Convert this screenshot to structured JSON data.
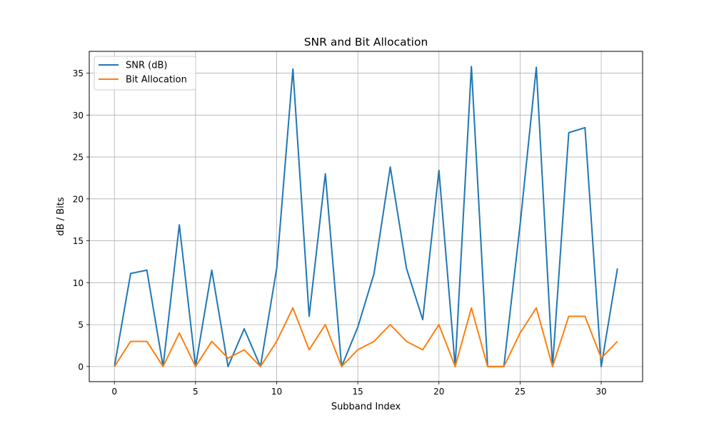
{
  "chart_data": {
    "type": "line",
    "title": "SNR and Bit Allocation",
    "xlabel": "Subband Index",
    "ylabel": "dB / Bits",
    "x": [
      0,
      1,
      2,
      3,
      4,
      5,
      6,
      7,
      8,
      9,
      10,
      11,
      12,
      13,
      14,
      15,
      16,
      17,
      18,
      19,
      20,
      21,
      22,
      23,
      24,
      25,
      26,
      27,
      28,
      29,
      30,
      31
    ],
    "xlim": [
      -1.55,
      32.55
    ],
    "ylim": [
      -1.8,
      37.6
    ],
    "xticks": [
      0,
      5,
      10,
      15,
      20,
      25,
      30
    ],
    "yticks": [
      0,
      5,
      10,
      15,
      20,
      25,
      30,
      35
    ],
    "grid": true,
    "legend_position": "top-left",
    "series": [
      {
        "name": "SNR (dB)",
        "color": "#1f77b4",
        "values": [
          0,
          11.1,
          11.5,
          0,
          16.9,
          0,
          11.5,
          0,
          4.5,
          0,
          11.7,
          35.5,
          6.0,
          23.0,
          0,
          4.7,
          11.1,
          23.8,
          11.7,
          5.6,
          23.4,
          0,
          35.8,
          0,
          0,
          16.9,
          35.7,
          0,
          27.9,
          28.5,
          0,
          11.7
        ]
      },
      {
        "name": "Bit Allocation",
        "color": "#ff7f0e",
        "values": [
          0,
          3,
          3,
          0,
          4,
          0,
          3,
          1,
          2,
          0,
          3,
          7,
          2,
          5,
          0,
          2,
          3,
          5,
          3,
          2,
          5,
          0,
          7,
          0,
          0,
          4,
          7,
          0,
          6,
          6,
          1,
          3
        ]
      }
    ]
  }
}
